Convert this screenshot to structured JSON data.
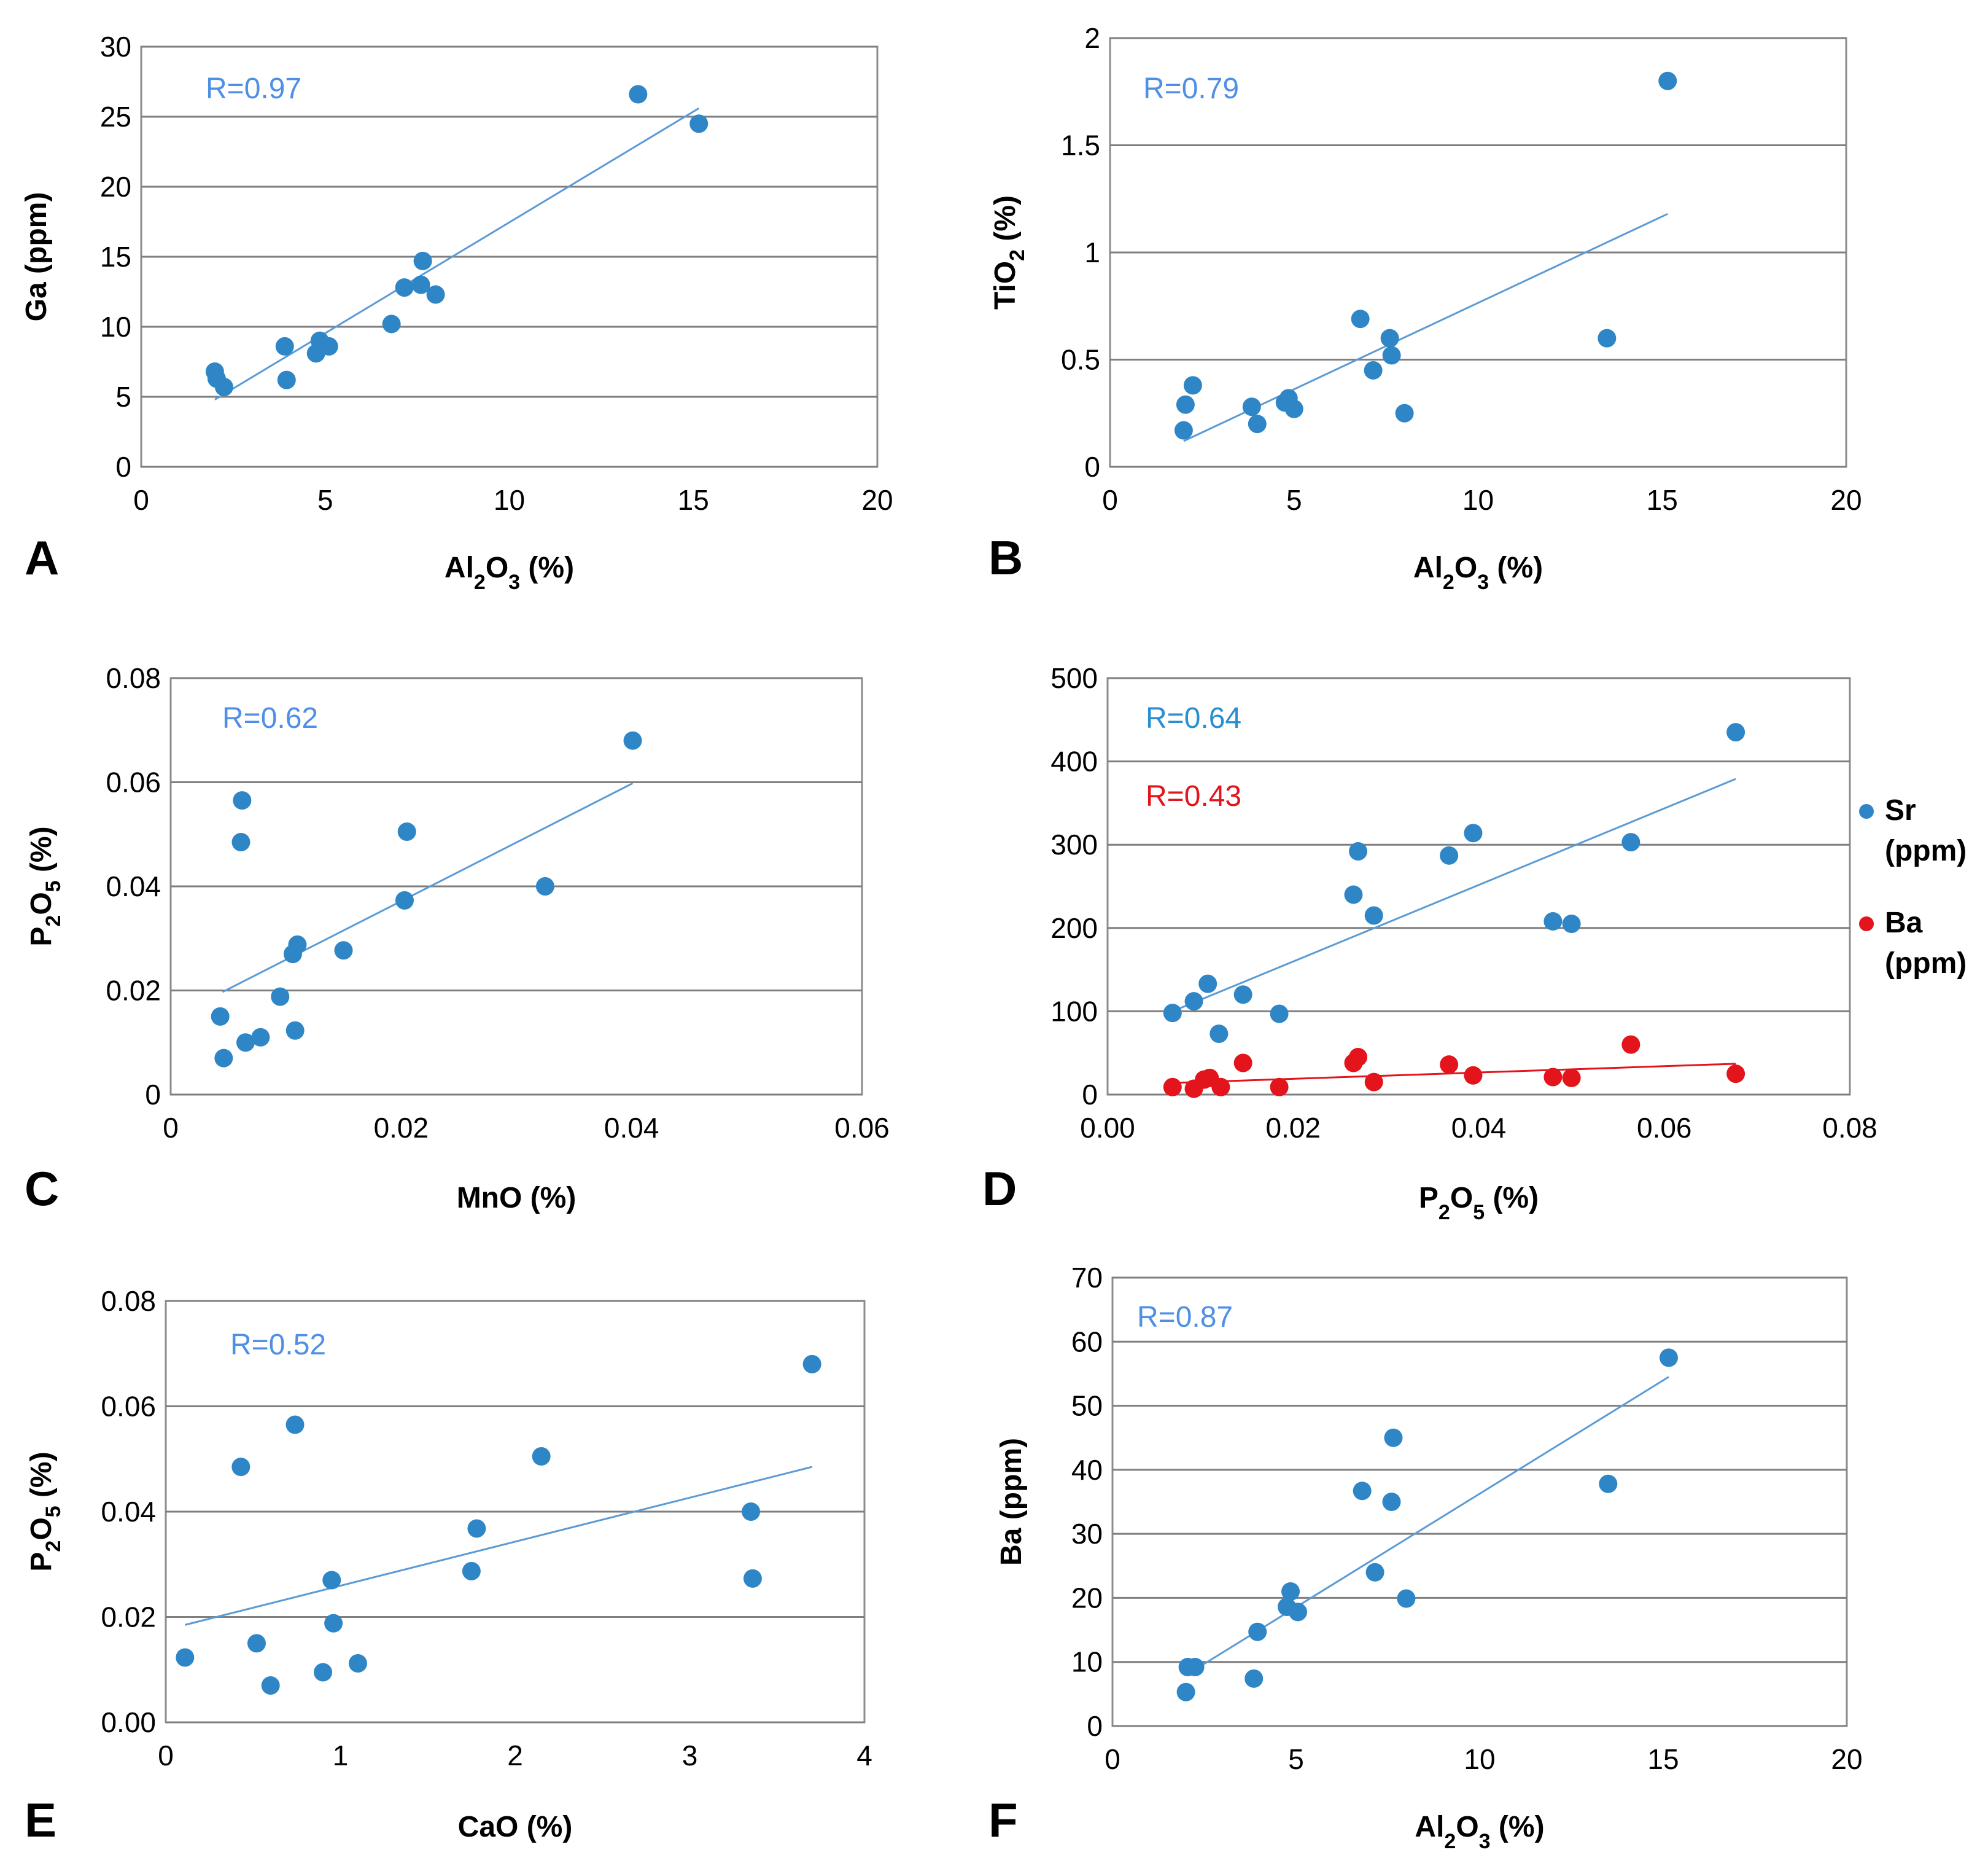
{
  "colors": {
    "blue": "#2e86c7",
    "trend": "#5b9bd5",
    "rtext": "#4f8fe6",
    "rtext_d": "#2a8fd0",
    "red": "#e3141c"
  },
  "chart_data": [
    {
      "type": "scatter",
      "panel": "A",
      "xlabel": "Al2O3 (%)",
      "ylabel": "Ga (ppm)",
      "xlim": [
        0,
        20
      ],
      "ylim": [
        0,
        30
      ],
      "xticks": [
        "0",
        "5",
        "10",
        "15",
        "20"
      ],
      "yticks": [
        "0",
        "5",
        "10",
        "15",
        "20",
        "25",
        "30"
      ],
      "r_labels": [
        {
          "text": "R=0.97",
          "color": "rtext"
        }
      ],
      "series": [
        {
          "name": "Ga",
          "color": "blue",
          "x": [
            2.0,
            2.05,
            2.25,
            3.9,
            3.95,
            4.75,
            4.85,
            5.1,
            6.8,
            7.15,
            7.6,
            7.65,
            8.0,
            13.5,
            15.15
          ],
          "y": [
            6.8,
            6.3,
            5.7,
            8.6,
            6.2,
            8.1,
            9.0,
            8.6,
            10.2,
            12.8,
            13.0,
            14.7,
            12.3,
            26.6,
            24.5
          ],
          "trend": [
            [
              2.0,
              4.8
            ],
            [
              15.15,
              25.6
            ]
          ]
        }
      ]
    },
    {
      "type": "scatter",
      "panel": "B",
      "xlabel": "Al2O3 (%)",
      "ylabel": "TiO2 (%)",
      "xlim": [
        0,
        20
      ],
      "ylim": [
        0,
        2
      ],
      "xticks": [
        "0",
        "5",
        "10",
        "15",
        "20"
      ],
      "yticks": [
        "0",
        "0.5",
        "1",
        "1.5",
        "2"
      ],
      "r_labels": [
        {
          "text": "R=0.79",
          "color": "rtext"
        }
      ],
      "series": [
        {
          "name": "TiO2",
          "color": "blue",
          "x": [
            2.0,
            2.05,
            2.25,
            3.85,
            4.0,
            4.75,
            4.85,
            5.0,
            6.8,
            7.15,
            7.6,
            7.65,
            8.0,
            13.5,
            15.15
          ],
          "y": [
            0.17,
            0.29,
            0.38,
            0.28,
            0.2,
            0.3,
            0.32,
            0.27,
            0.69,
            0.45,
            0.6,
            0.52,
            0.25,
            0.6,
            1.8
          ],
          "trend": [
            [
              2.0,
              0.12
            ],
            [
              15.15,
              1.18
            ]
          ]
        }
      ]
    },
    {
      "type": "scatter",
      "panel": "C",
      "xlabel": "MnO (%)",
      "ylabel": "P2O5 (%)",
      "xlim": [
        0,
        0.06
      ],
      "ylim": [
        0,
        0.08
      ],
      "xticks": [
        "0",
        "0.02",
        "0.04",
        "0.06"
      ],
      "yticks": [
        "0",
        "0.02",
        "0.04",
        "0.06",
        "0.08"
      ],
      "r_labels": [
        {
          "text": "R=0.62",
          "color": "rtext"
        }
      ],
      "series": [
        {
          "name": "P2O5",
          "color": "blue",
          "x": [
            0.0043,
            0.0046,
            0.0061,
            0.0062,
            0.0065,
            0.0078,
            0.0095,
            0.0106,
            0.0108,
            0.011,
            0.015,
            0.0203,
            0.0205,
            0.0325,
            0.0401
          ],
          "y": [
            0.015,
            0.007,
            0.0485,
            0.0565,
            0.01,
            0.011,
            0.0188,
            0.027,
            0.0123,
            0.0288,
            0.0277,
            0.0373,
            0.0505,
            0.04,
            0.068
          ],
          "trend": [
            [
              0.0045,
              0.0197
            ],
            [
              0.0401,
              0.0598
            ]
          ]
        }
      ]
    },
    {
      "type": "scatter",
      "panel": "D",
      "xlabel": "P2O5 (%)",
      "ylabel": "",
      "xlim": [
        0,
        0.08
      ],
      "ylim": [
        0,
        500
      ],
      "xticks": [
        "0.00",
        "0.02",
        "0.04",
        "0.06",
        "0.08"
      ],
      "yticks": [
        "0",
        "100",
        "200",
        "300",
        "400",
        "500"
      ],
      "r_labels": [
        {
          "text": "R=0.64",
          "color": "rtext_d"
        },
        {
          "text": "R=0.43",
          "color": "red"
        }
      ],
      "legend": [
        {
          "name": "Sr",
          "unit": "(ppm)",
          "color": "blue"
        },
        {
          "name": "Ba",
          "unit": "(ppm)",
          "color": "red"
        }
      ],
      "series": [
        {
          "name": "Sr",
          "color": "blue",
          "x": [
            0.007,
            0.0093,
            0.0108,
            0.012,
            0.0146,
            0.0185,
            0.0265,
            0.027,
            0.0287,
            0.0368,
            0.0394,
            0.048,
            0.05,
            0.0564,
            0.0677
          ],
          "y": [
            98,
            112,
            133,
            73,
            120,
            97,
            240,
            292,
            215,
            287,
            314,
            208,
            205,
            303,
            435
          ],
          "trend": [
            [
              0.007,
              100
            ],
            [
              0.0677,
              379
            ]
          ]
        },
        {
          "name": "Ba",
          "color": "red",
          "x": [
            0.007,
            0.0093,
            0.0104,
            0.011,
            0.0122,
            0.0146,
            0.0185,
            0.0265,
            0.027,
            0.0287,
            0.0368,
            0.0394,
            0.048,
            0.05,
            0.0564,
            0.0677
          ],
          "y": [
            9,
            7,
            18,
            20,
            9,
            38,
            9,
            38,
            45,
            15,
            36,
            23,
            21,
            20,
            60,
            25
          ],
          "trend": [
            [
              0.007,
              14
            ],
            [
              0.0677,
              37
            ]
          ]
        }
      ]
    },
    {
      "type": "scatter",
      "panel": "E",
      "xlabel": "CaO (%)",
      "ylabel": "P2O5 (%)",
      "xlim": [
        0,
        4
      ],
      "ylim": [
        0,
        0.08
      ],
      "xticks": [
        "0",
        "1",
        "2",
        "3",
        "4"
      ],
      "yticks": [
        "0.00",
        "0.02",
        "0.04",
        "0.06",
        "0.08"
      ],
      "r_labels": [
        {
          "text": "R=0.52",
          "color": "rtext"
        }
      ],
      "series": [
        {
          "name": "P2O5",
          "color": "blue",
          "x": [
            0.11,
            0.43,
            0.52,
            0.6,
            0.74,
            0.9,
            0.95,
            0.96,
            1.1,
            1.75,
            1.78,
            2.15,
            3.35,
            3.36,
            3.7
          ],
          "y": [
            0.0123,
            0.0485,
            0.015,
            0.007,
            0.0565,
            0.0095,
            0.027,
            0.0188,
            0.0112,
            0.0287,
            0.0368,
            0.0505,
            0.04,
            0.0273,
            0.068
          ],
          "trend": [
            [
              0.11,
              0.0185
            ],
            [
              3.7,
              0.0485
            ]
          ]
        }
      ]
    },
    {
      "type": "scatter",
      "panel": "F",
      "xlabel": "Al2O3 (%)",
      "ylabel": "Ba (ppm)",
      "xlim": [
        0,
        20
      ],
      "ylim": [
        0,
        70
      ],
      "xticks": [
        "0",
        "5",
        "10",
        "15",
        "20"
      ],
      "yticks": [
        "0",
        "10",
        "20",
        "30",
        "40",
        "50",
        "60",
        "70"
      ],
      "r_labels": [
        {
          "text": "R=0.87",
          "color": "rtext"
        }
      ],
      "series": [
        {
          "name": "Ba",
          "color": "blue",
          "x": [
            2.0,
            2.05,
            2.25,
            3.85,
            3.95,
            4.75,
            4.85,
            5.05,
            6.8,
            7.15,
            7.6,
            7.65,
            8.0,
            13.5,
            15.15
          ],
          "y": [
            5.3,
            9.2,
            9.2,
            7.4,
            14.7,
            18.6,
            21.0,
            17.8,
            36.7,
            24.0,
            35.0,
            45.0,
            19.9,
            37.8,
            57.5
          ],
          "trend": [
            [
              2.3,
              9.0
            ],
            [
              15.15,
              54.5
            ]
          ]
        }
      ]
    }
  ]
}
